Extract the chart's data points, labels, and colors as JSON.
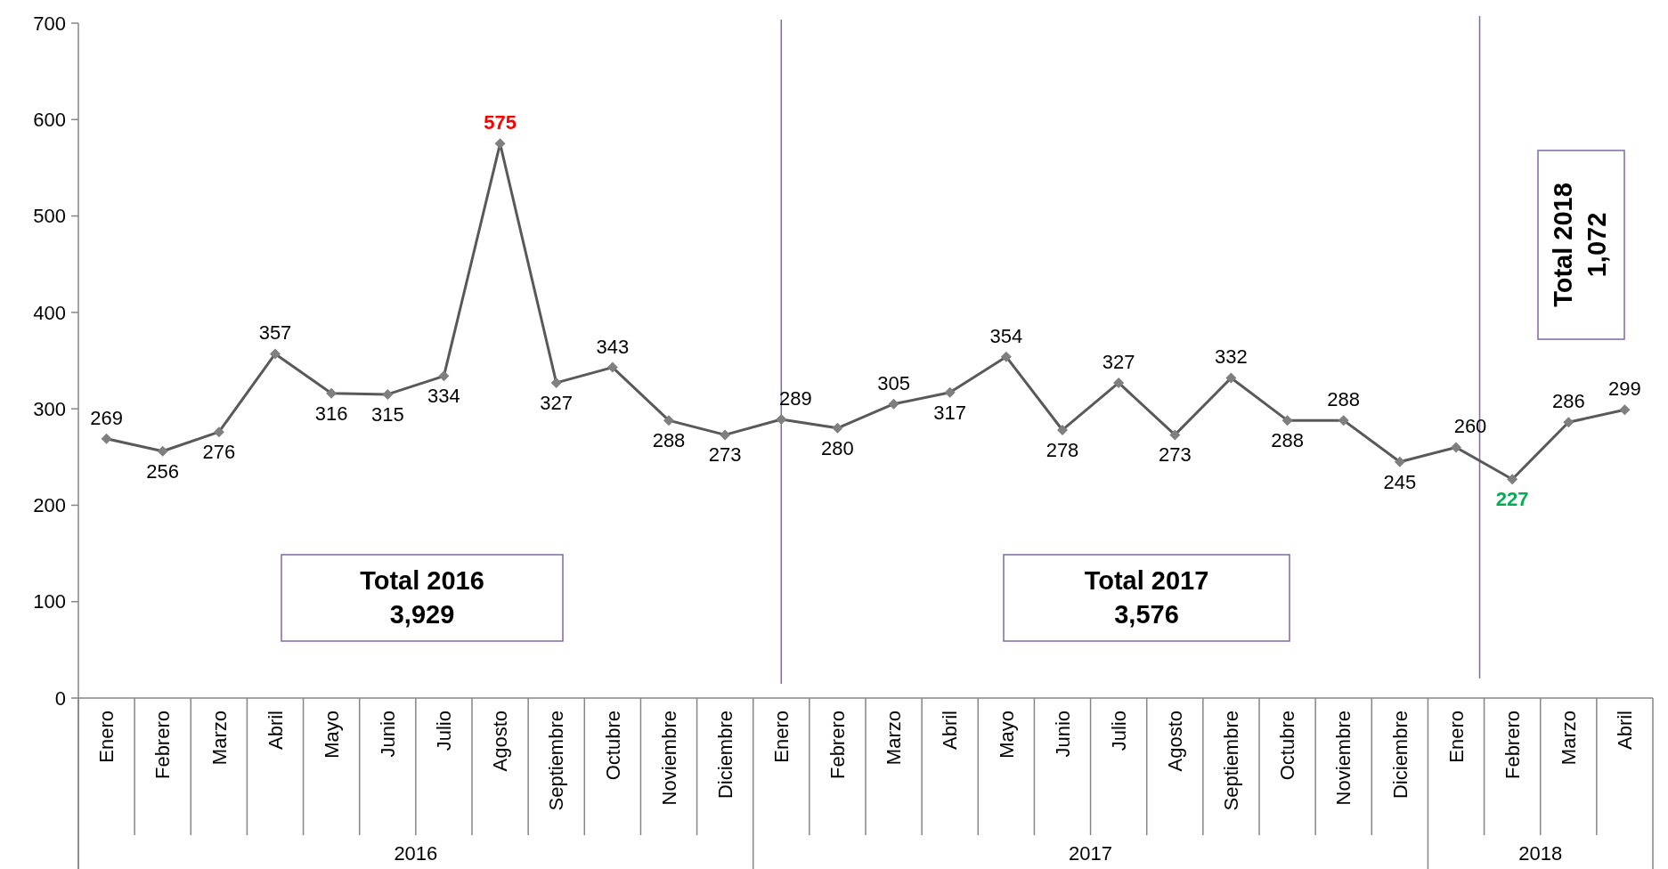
{
  "chart_data": {
    "type": "line",
    "categories": [
      "Enero",
      "Febrero",
      "Marzo",
      "Abril",
      "Mayo",
      "Junio",
      "Julio",
      "Agosto",
      "Septiembre",
      "Octubre",
      "Noviembre",
      "Diciembre",
      "Enero",
      "Febrero",
      "Marzo",
      "Abril",
      "Mayo",
      "Junio",
      "Julio",
      "Agosto",
      "Septiembre",
      "Octubre",
      "Noviembre",
      "Diciembre",
      "Enero",
      "Febrero",
      "Marzo",
      "Abril"
    ],
    "series": [
      {
        "color": "#595959",
        "values": [
          269,
          256,
          276,
          357,
          316,
          315,
          334,
          575,
          327,
          343,
          288,
          273,
          289,
          280,
          305,
          317,
          354,
          278,
          327,
          273,
          332,
          288,
          288,
          245,
          260,
          227,
          286,
          299
        ]
      }
    ],
    "ylim": [
      0,
      700
    ],
    "yticks": [
      0,
      100,
      200,
      300,
      400,
      500,
      600,
      700
    ],
    "grid": "x",
    "marker": "diamond",
    "line_style": "solid",
    "data_labels": true,
    "annotations": [
      "2016",
      "2017",
      "2018",
      "Total 2016\n3,929",
      "Total 2017\n3,576",
      "Total 2018\n1,072"
    ]
  }
}
